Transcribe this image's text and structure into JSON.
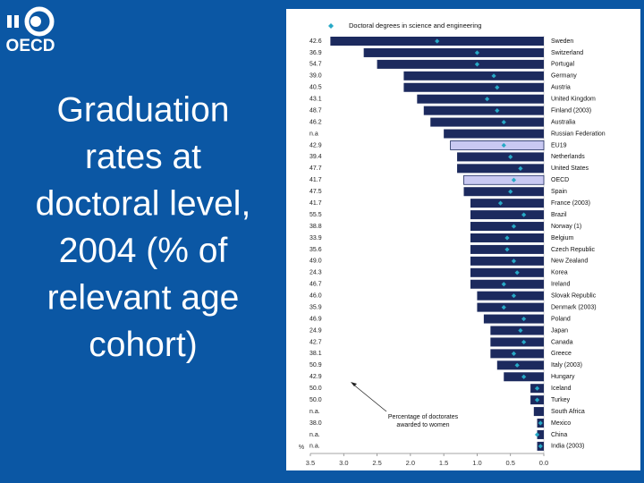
{
  "logo": "OECD",
  "title_lines": [
    "Graduation",
    "rates at",
    "doctoral level,",
    "2004 (% of",
    "relevant age",
    "cohort)"
  ],
  "chart_data": {
    "type": "bar",
    "orientation": "horizontal",
    "categories": [
      "Sweden",
      "Switzerland",
      "Portugal",
      "Germany",
      "Austria",
      "United Kingdom",
      "Finland (2003)",
      "Australia",
      "Russian Federation",
      "EU19",
      "Netherlands",
      "United States",
      "OECD",
      "Spain",
      "France (2003)",
      "Brazil",
      "Norway (1)",
      "Belgium",
      "Czech Republic",
      "New Zealand",
      "Korea",
      "Ireland",
      "Slovak Republic",
      "Denmark (2003)",
      "Poland",
      "Japan",
      "Canada",
      "Greece",
      "Italy (2003)",
      "Hungary",
      "Iceland",
      "Turkey",
      "South Africa",
      "Mexico",
      "China",
      "India (2003)"
    ],
    "values": [
      3.2,
      2.7,
      2.5,
      2.1,
      2.1,
      1.9,
      1.8,
      1.7,
      1.5,
      1.4,
      1.3,
      1.3,
      1.2,
      1.2,
      1.1,
      1.1,
      1.1,
      1.1,
      1.1,
      1.1,
      1.1,
      1.1,
      1.0,
      1.0,
      0.9,
      0.8,
      0.8,
      0.8,
      0.7,
      0.6,
      0.2,
      0.2,
      0.15,
      0.1,
      0.1,
      0.1
    ],
    "color": "#1c2a5e",
    "highlight": [
      9,
      12
    ],
    "highlight_color": "#c9c9f2",
    "series": [
      {
        "name": "Doctoral degrees in science and engineering",
        "color": "#27a9c6",
        "marker": "diamond",
        "values": [
          1.6,
          1.0,
          1.0,
          0.75,
          0.7,
          0.85,
          0.7,
          0.6,
          null,
          0.6,
          0.5,
          0.35,
          0.45,
          0.5,
          0.65,
          0.3,
          0.45,
          0.55,
          0.55,
          0.45,
          0.4,
          0.6,
          0.45,
          0.6,
          0.3,
          0.35,
          0.3,
          0.45,
          0.4,
          0.3,
          0.1,
          0.1,
          null,
          0.05,
          0.1,
          0.05
        ]
      }
    ],
    "women_share_labels": [
      "42.6",
      "36.9",
      "54.7",
      "39.0",
      "40.5",
      "43.1",
      "48.7",
      "46.2",
      "n.a",
      "42.9",
      "39.4",
      "47.7",
      "41.7",
      "47.5",
      "41.7",
      "55.5",
      "38.8",
      "33.9",
      "35.6",
      "49.0",
      "24.3",
      "46.7",
      "46.0",
      "35.9",
      "46.9",
      "24.9",
      "42.7",
      "38.1",
      "50.9",
      "42.9",
      "50.0",
      "50.0",
      "n.a.",
      "38.0",
      "n.a.",
      "n.a."
    ],
    "annotation_lines": [
      "Percentage of doctorates",
      "awarded to women"
    ],
    "x_unit": "%",
    "xlim": [
      3.5,
      0
    ],
    "xticks": [
      3.5,
      {
        "value": 3,
        "label": "3.0"
      },
      2.5,
      {
        "value": 2,
        "label": "2.0"
      },
      1.5,
      {
        "value": 1,
        "label": "1.0"
      },
      0.5,
      {
        "value": 0,
        "label": "0.0"
      }
    ]
  }
}
